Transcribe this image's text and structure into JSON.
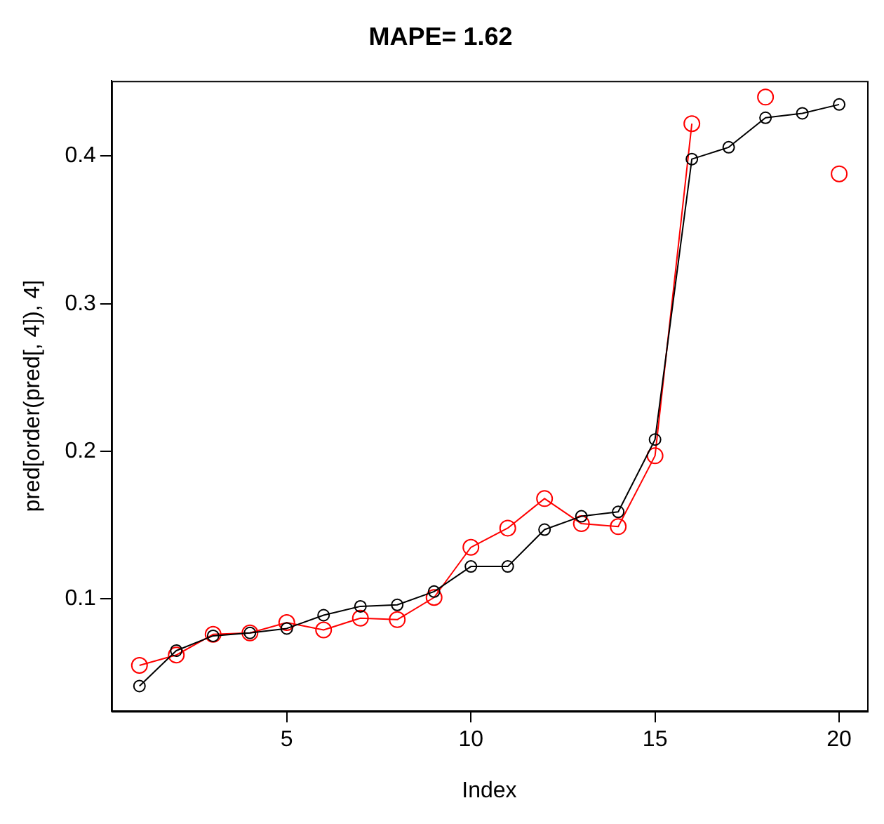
{
  "chart_data": {
    "type": "line",
    "title": "MAPE= 1.62",
    "xlabel": "Index",
    "ylabel": "pred[order(pred[, 4]), 4]",
    "x": [
      1,
      2,
      3,
      4,
      5,
      6,
      7,
      8,
      9,
      10,
      11,
      12,
      13,
      14,
      15,
      16,
      17,
      18,
      19,
      20
    ],
    "series": [
      {
        "color": "#000000",
        "values": [
          0.041,
          0.065,
          0.075,
          0.077,
          0.08,
          0.089,
          0.095,
          0.096,
          0.105,
          0.122,
          0.122,
          0.147,
          0.156,
          0.159,
          0.208,
          0.398,
          0.406,
          0.426,
          0.429,
          0.435
        ]
      },
      {
        "color": "#ff0000",
        "values": [
          0.055,
          0.062,
          0.076,
          0.077,
          0.084,
          0.079,
          0.087,
          0.086,
          0.101,
          0.135,
          0.148,
          0.168,
          0.151,
          0.149,
          0.197,
          0.422,
          null,
          0.44,
          null,
          0.388
        ]
      }
    ],
    "xlim": [
      0.24,
      20.76
    ],
    "xticks": [
      5,
      10,
      15,
      20
    ],
    "ylim": [
      0.024,
      0.451
    ],
    "yticks": [
      0.1,
      0.2,
      0.3,
      0.4
    ],
    "grid": false,
    "legend": false,
    "marker": "circle",
    "line_style": "solid"
  }
}
